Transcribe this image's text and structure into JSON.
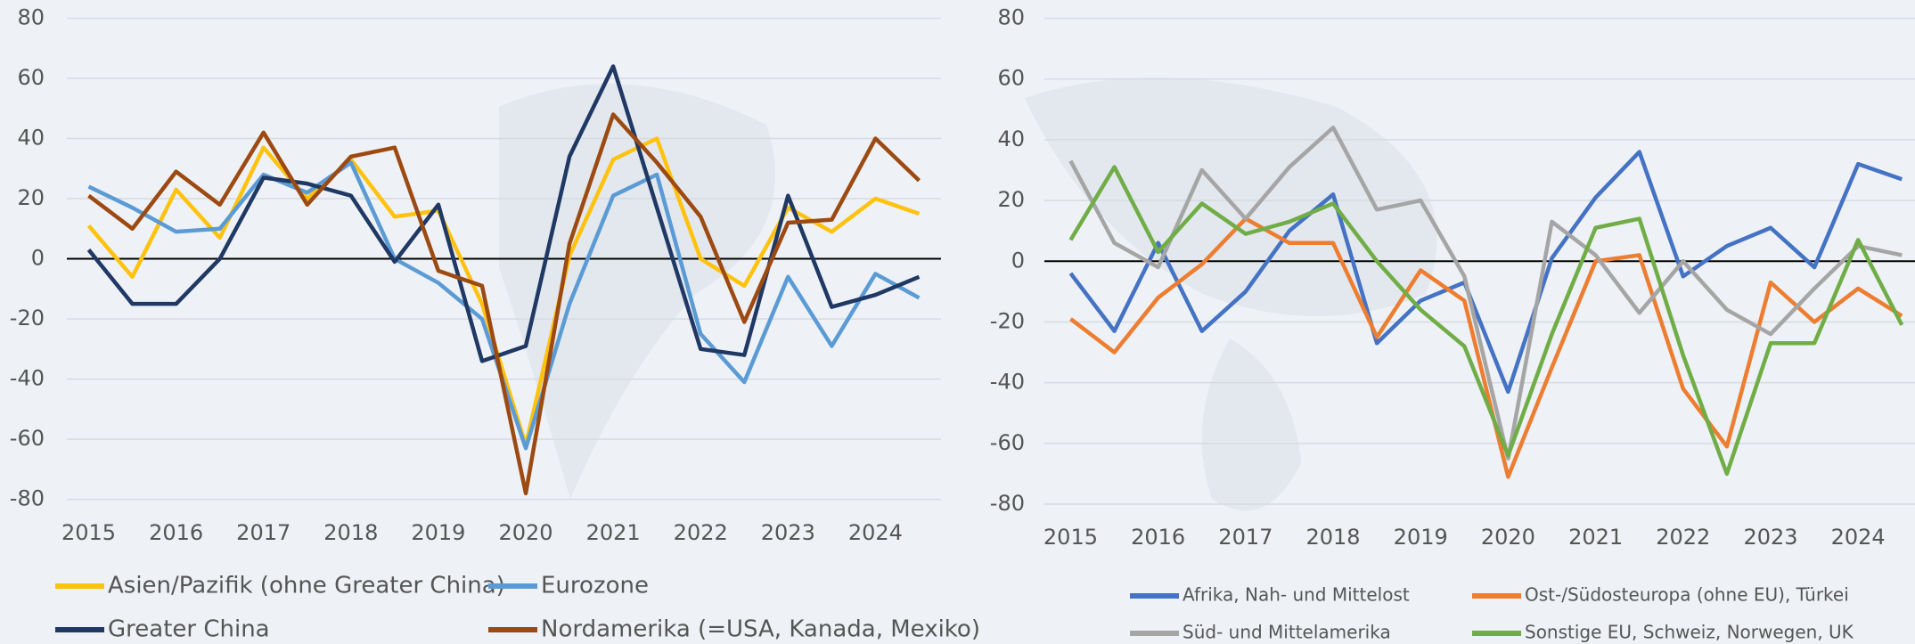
{
  "chart_data": [
    {
      "type": "line",
      "x": [
        2015,
        2015.5,
        2016,
        2016.5,
        2017,
        2017.5,
        2018,
        2018.5,
        2019,
        2019.5,
        2020,
        2020.5,
        2021,
        2021.5,
        2022,
        2022.5,
        2023,
        2023.5,
        2024,
        2024.5
      ],
      "series": [
        {
          "name": "Asien/Pazifik (ohne Greater China)",
          "color": "#ffc20e",
          "values": [
            11,
            -6,
            23,
            7,
            37,
            20,
            33,
            14,
            16,
            -15,
            -62,
            1,
            33,
            40,
            0,
            -9,
            17,
            9,
            20,
            15
          ]
        },
        {
          "name": "Eurozone",
          "color": "#5b9bd5",
          "values": [
            24,
            17,
            9,
            10,
            28,
            22,
            32,
            0,
            -8,
            -20,
            -63,
            -15,
            21,
            28,
            -25,
            -41,
            -6,
            -29,
            -5,
            -13
          ]
        },
        {
          "name": "Greater China",
          "color": "#1f3864",
          "values": [
            3,
            -15,
            -15,
            0,
            27,
            25,
            21,
            -1,
            18,
            -34,
            -29,
            34,
            64,
            17,
            -30,
            -32,
            21,
            -16,
            -12,
            -6
          ]
        },
        {
          "name": "Nordamerika (=USA, Kanada, Mexiko)",
          "color": "#9c4a12",
          "values": [
            21,
            10,
            29,
            18,
            42,
            18,
            34,
            37,
            -4,
            -9,
            -78,
            5,
            48,
            32,
            14,
            -21,
            12,
            13,
            40,
            26
          ]
        }
      ],
      "xlim": [
        2014.75,
        2024.75
      ],
      "xticks": [
        2015,
        2016,
        2017,
        2018,
        2019,
        2020,
        2021,
        2022,
        2023,
        2024
      ],
      "ylim": [
        -80,
        80
      ],
      "yticks": [
        -80,
        -60,
        -40,
        -20,
        0,
        20,
        40,
        60,
        80
      ],
      "grid": true
    },
    {
      "type": "line",
      "x": [
        2015,
        2015.5,
        2016,
        2016.5,
        2017,
        2017.5,
        2018,
        2018.5,
        2019,
        2019.5,
        2020,
        2020.5,
        2021,
        2021.5,
        2022,
        2022.5,
        2023,
        2023.5,
        2024,
        2024.5
      ],
      "series": [
        {
          "name": "Afrika, Nah- und Mittelost",
          "color": "#4472c4",
          "values": [
            -4,
            -23,
            6,
            -23,
            -10,
            10,
            22,
            -27,
            -13,
            -7,
            -43,
            1,
            21,
            36,
            -5,
            5,
            11,
            -2,
            32,
            27
          ]
        },
        {
          "name": "Ost-/Südosteuropa (ohne EU), Türkei",
          "color": "#ed7d31",
          "values": [
            -19,
            -30,
            -12,
            -1,
            14,
            6,
            6,
            -25,
            -3,
            -13,
            -71,
            -35,
            0,
            2,
            -42,
            -61,
            -7,
            -20,
            -9,
            -18
          ]
        },
        {
          "name": "Süd- und Mittelamerika",
          "color": "#a5a5a5",
          "values": [
            33,
            6,
            -2,
            30,
            14,
            31,
            44,
            17,
            20,
            -5,
            -65,
            13,
            2,
            -17,
            0,
            -16,
            -24,
            -9,
            5,
            2
          ]
        },
        {
          "name": "Sonstige EU, Schweiz, Norwegen, UK",
          "color": "#70ad47",
          "values": [
            7,
            31,
            3,
            19,
            9,
            13,
            19,
            0,
            -16,
            -28,
            -64,
            -24,
            11,
            14,
            -31,
            -70,
            -27,
            -27,
            7,
            -21
          ]
        }
      ],
      "xlim": [
        2014.7,
        2024.65
      ],
      "xticks": [
        2015,
        2016,
        2017,
        2018,
        2019,
        2020,
        2021,
        2022,
        2023,
        2024
      ],
      "ylim": [
        -80,
        80
      ],
      "yticks": [
        -80,
        -60,
        -40,
        -20,
        0,
        20,
        40,
        60,
        80
      ],
      "grid": true
    }
  ]
}
